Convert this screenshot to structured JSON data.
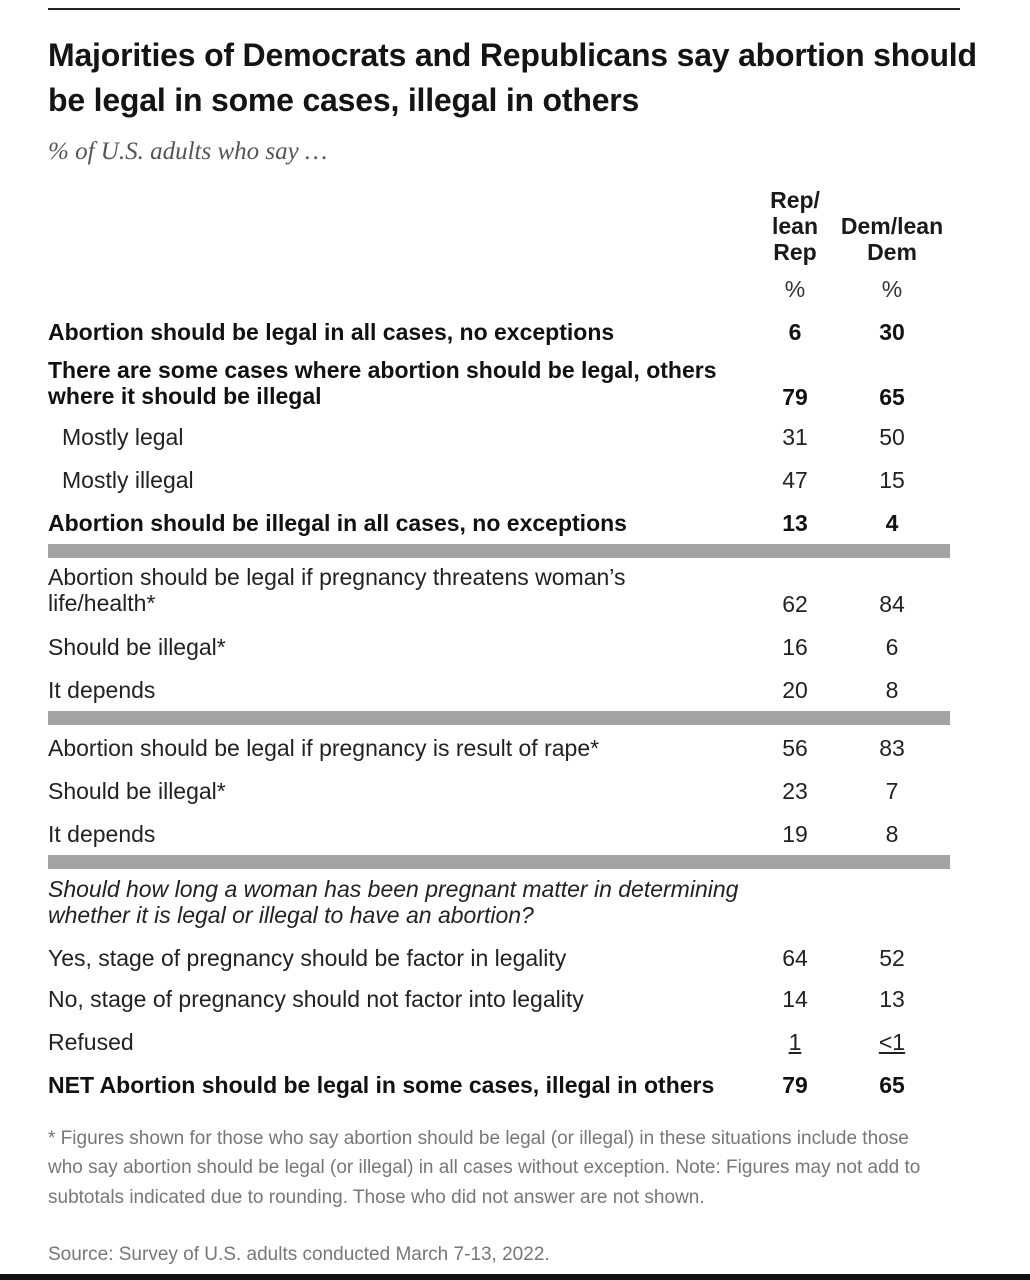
{
  "chart_data": {
    "type": "table",
    "title": "Majorities of Democrats and Republicans say abortion should be legal in some cases, illegal in others",
    "subtitle": "% of U.S. adults who say …",
    "columns": [
      {
        "header": "Rep/\nlean\nRep",
        "unit": "%"
      },
      {
        "header": "Dem/lean\nDem",
        "unit": "%"
      }
    ],
    "rows": [
      {
        "label": "Abortion should be legal in all cases, no exceptions",
        "rep": "6",
        "dem": "30"
      },
      {
        "label": "There are some cases where abortion should be legal, others where it should be illegal",
        "rep": "79",
        "dem": "65"
      },
      {
        "label": "Mostly legal",
        "rep": "31",
        "dem": "50"
      },
      {
        "label": "Mostly illegal",
        "rep": "47",
        "dem": "15"
      },
      {
        "label": "Abortion should be illegal in all cases, no exceptions",
        "rep": "13",
        "dem": "4"
      },
      {
        "label": "Abortion should be legal if pregnancy threatens woman’s life/health*",
        "rep": "62",
        "dem": "84"
      },
      {
        "label": "Should be illegal*",
        "rep": "16",
        "dem": "6"
      },
      {
        "label": "It depends",
        "rep": "20",
        "dem": "8"
      },
      {
        "label": "Abortion should be legal if pregnancy is result of rape*",
        "rep": "56",
        "dem": "83"
      },
      {
        "label": "Should be illegal*",
        "rep": "23",
        "dem": "7"
      },
      {
        "label": "It depends",
        "rep": "19",
        "dem": "8"
      },
      {
        "label": "Should how long a woman has been pregnant matter in determining whether it is legal or illegal to have an abortion?",
        "rep": "",
        "dem": ""
      },
      {
        "label": "Yes, stage of pregnancy should be factor in legality",
        "rep": "64",
        "dem": "52"
      },
      {
        "label": "No, stage of pregnancy should not factor into legality",
        "rep": "14",
        "dem": "13"
      },
      {
        "label": "Refused",
        "rep": "1",
        "dem": "<1"
      },
      {
        "label": "NET Abortion should be legal in some cases, illegal in others",
        "rep": "79",
        "dem": "65"
      }
    ],
    "footnote": "* Figures shown for those who say abortion should be legal (or illegal) in these situations include those who say abortion should be legal (or illegal) in all cases without exception. Note: Figures may not add to subtotals indicated due to rounding. Those who did not answer are not shown.",
    "source": "Source: Survey of U.S. adults conducted March 7-13, 2022."
  }
}
